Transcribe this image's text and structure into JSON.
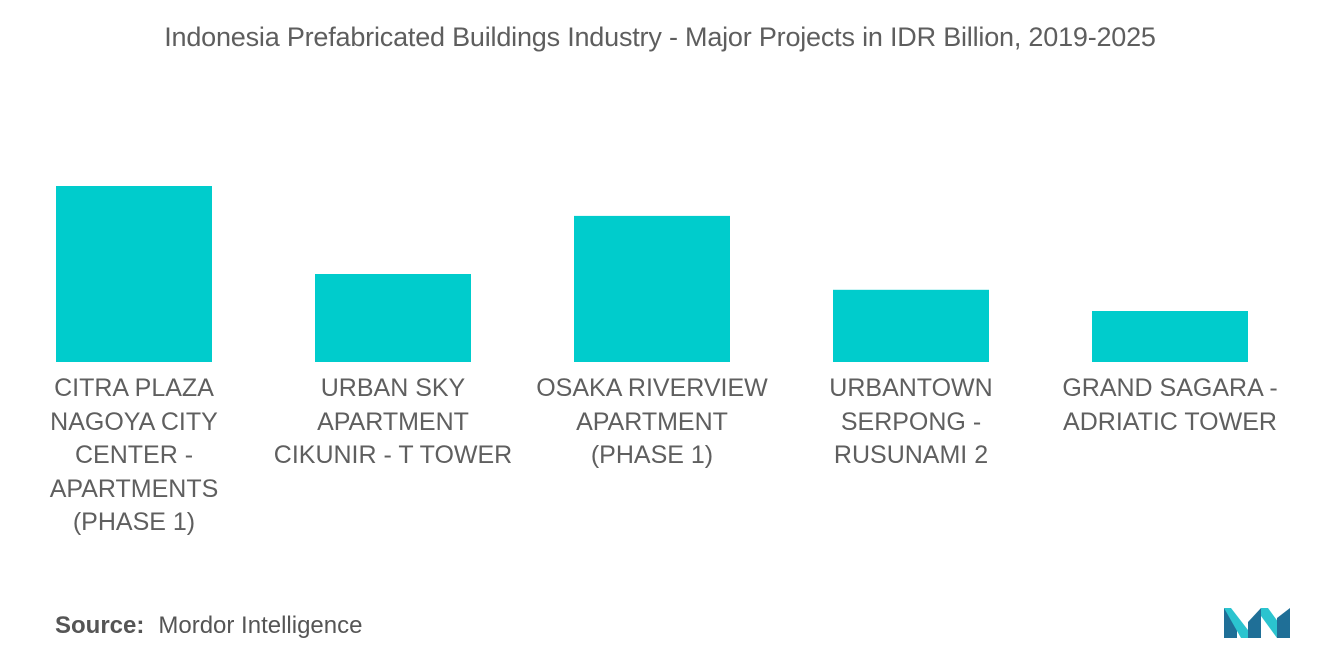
{
  "colors": {
    "bar": "#00CCCC",
    "title": "#5e5e5e",
    "label": "#5f5f5f",
    "logo_dark": "#1f6f97",
    "logo_light": "#2bc4cf"
  },
  "source": {
    "key": "Source:",
    "value": "Mordor Intelligence"
  },
  "logo": {
    "icon": "mordor-intelligence-logo-icon"
  },
  "chart_data": {
    "type": "bar",
    "title": "Indonesia Prefabricated Buildings Industry - Major Projects in IDR Billion, 2019-2025",
    "xlabel": "",
    "ylabel": "",
    "categories": [
      "CITRA PLAZA NAGOYA CITY CENTER - APARTMENTS (PHASE 1)",
      "URBAN SKY APARTMENT CIKUNIR - T TOWER",
      "OSAKA RIVERVIEW APARTMENT (PHASE 1)",
      "URBANTOWN SERPONG - RUSUNAMI 2",
      "GRAND SAGARA - ADRIATIC TOWER"
    ],
    "values": [
      100,
      50,
      83,
      41,
      29
    ],
    "ylim": [
      0,
      100
    ],
    "grid": false,
    "legend": "none",
    "axis_visible": false
  }
}
